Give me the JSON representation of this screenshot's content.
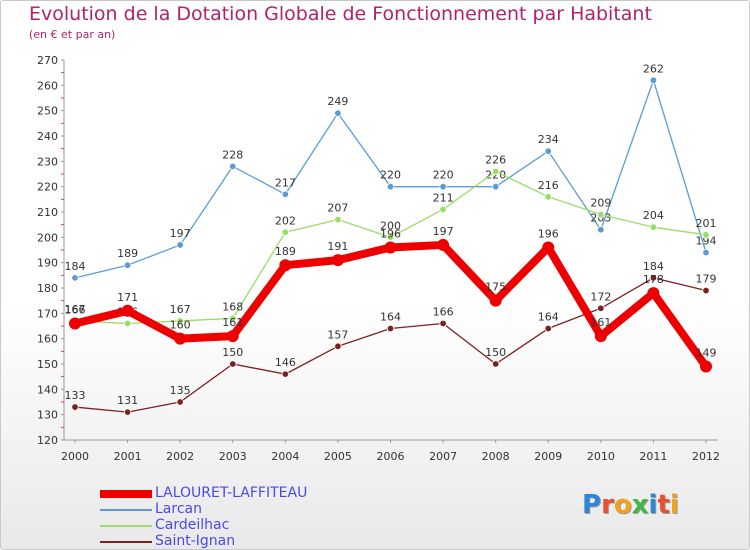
{
  "title": "Evolution de la Dotation Globale de Fonctionnement par Habitant",
  "subtitle": "(en € et par an)",
  "logo": {
    "text": "Proxiti",
    "letters": [
      {
        "ch": "P",
        "color": "#2e86d8"
      },
      {
        "ch": "r",
        "color": "#e9502f"
      },
      {
        "ch": "o",
        "color": "#f2a21b"
      },
      {
        "ch": "x",
        "color": "#43b649"
      },
      {
        "ch": "i",
        "color": "#2e86d8"
      },
      {
        "ch": "t",
        "color": "#e9502f"
      },
      {
        "ch": "i",
        "color": "#f2a21b"
      }
    ]
  },
  "chart_data": {
    "type": "line",
    "title": "Evolution de la Dotation Globale de Fonctionnement par Habitant",
    "subtitle": "(en € et par an)",
    "x": [
      "2000",
      "2001",
      "2002",
      "2003",
      "2004",
      "2005",
      "2006",
      "2007",
      "2008",
      "2009",
      "2010",
      "2011",
      "2012"
    ],
    "ylim": [
      120,
      270
    ],
    "yticks": [
      120,
      130,
      140,
      150,
      160,
      170,
      180,
      190,
      200,
      210,
      220,
      230,
      240,
      250,
      260,
      270
    ],
    "xlabel": "",
    "ylabel": "",
    "grid": false,
    "legend": "bottom-left",
    "series": [
      {
        "name": "LALOURET-LAFFITEAU",
        "color": "#ee0000",
        "values": [
          166,
          171,
          160,
          161,
          189,
          191,
          196,
          197,
          175,
          196,
          161,
          178,
          149
        ]
      },
      {
        "name": "Larcan",
        "color": "#5b9bd5",
        "values": [
          184,
          189,
          197,
          228,
          217,
          249,
          220,
          220,
          220,
          234,
          203,
          262,
          194
        ]
      },
      {
        "name": "Cardeilhac",
        "color": "#99dd66",
        "values": [
          167,
          166,
          167,
          168,
          202,
          207,
          200,
          211,
          226,
          216,
          209,
          204,
          201
        ]
      },
      {
        "name": "Saint-Ignan",
        "color": "#7b2121",
        "values": [
          133,
          131,
          135,
          150,
          146,
          157,
          164,
          166,
          150,
          164,
          172,
          184,
          179
        ]
      }
    ]
  }
}
